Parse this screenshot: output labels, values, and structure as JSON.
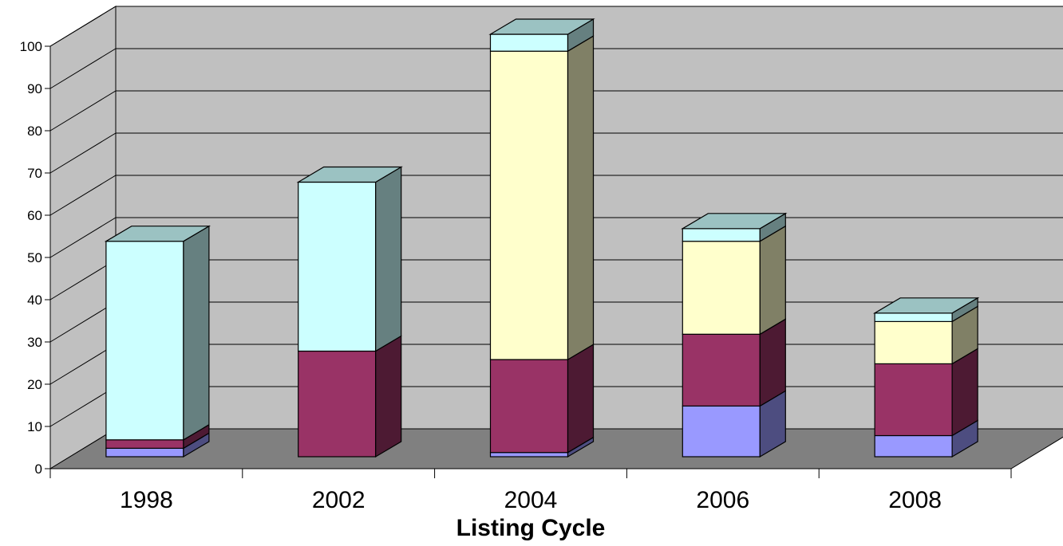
{
  "chart_data": {
    "type": "bar",
    "stacked": true,
    "three_d": true,
    "xlabel": "Listing Cycle",
    "ylabel": "",
    "ylim": [
      0,
      100
    ],
    "yticks": [
      0,
      10,
      20,
      30,
      40,
      50,
      60,
      70,
      80,
      90,
      100
    ],
    "categories": [
      "1998",
      "2002",
      "2004",
      "2006",
      "2008"
    ],
    "grid": true,
    "legend": "none",
    "series": [
      {
        "values": [
          2,
          0,
          1,
          12,
          5
        ],
        "color": "#9999ff"
      },
      {
        "values": [
          2,
          25,
          22,
          17,
          17
        ],
        "color": "#993366"
      },
      {
        "values": [
          0,
          0,
          73,
          22,
          10
        ],
        "color": "#ffffcc"
      },
      {
        "values": [
          47,
          40,
          4,
          3,
          2
        ],
        "color": "#ccffff"
      }
    ],
    "colors": {
      "back_wall": "#c0c0c0",
      "floor": "#808080",
      "gridline": "#000000"
    }
  }
}
